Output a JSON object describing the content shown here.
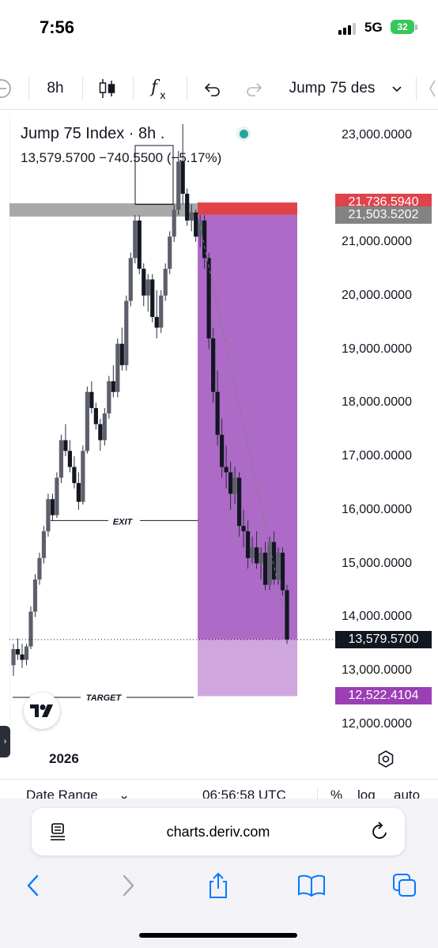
{
  "status_bar": {
    "time": "7:56",
    "network": "5G",
    "battery": "32"
  },
  "toolbar": {
    "interval": "8h",
    "indicator_icon": "fx-icon",
    "symbol": "Jump 75 des"
  },
  "legend": {
    "title": "Jump 75 Index · 8h .",
    "values": "13,579.5700  −740.5500 (−5.17%)"
  },
  "chart_data": {
    "type": "candlestick",
    "symbol": "Jump 75 Index",
    "interval": "8h",
    "y_ticks": [
      "23,000.0000",
      "21,000.0000",
      "20,000.0000",
      "19,000.0000",
      "18,000.0000",
      "17,000.0000",
      "16,000.0000",
      "15,000.0000",
      "14,000.0000",
      "13,000.0000",
      "12,000.0000"
    ],
    "ylim": [
      11700,
      23200
    ],
    "price_labels": [
      {
        "value": "21,736.5940",
        "color": "#e0424a"
      },
      {
        "value": "21,503.5202",
        "color": "#838383"
      },
      {
        "value": "13,579.5700",
        "color": "#131722"
      },
      {
        "value": "12,522.4104",
        "color": "#9b3fb5"
      }
    ],
    "short_position": {
      "entry": 21503.5202,
      "stop": 21736.594,
      "target": 12522.4104,
      "current": 13579.57
    },
    "annotations": [
      "EXIT",
      "TARGET"
    ],
    "candles": [
      [
        13100,
        13500,
        12900,
        13400
      ],
      [
        13400,
        13600,
        13200,
        13300
      ],
      [
        13300,
        13500,
        13050,
        13200
      ],
      [
        13200,
        13500,
        13100,
        13450
      ],
      [
        13450,
        14200,
        13400,
        14100
      ],
      [
        14100,
        14800,
        14000,
        14700
      ],
      [
        14700,
        15200,
        14600,
        15100
      ],
      [
        15100,
        15700,
        15000,
        15600
      ],
      [
        15600,
        16300,
        15500,
        16200
      ],
      [
        16200,
        16300,
        15800,
        15900
      ],
      [
        15900,
        16700,
        15850,
        16600
      ],
      [
        16600,
        17400,
        16500,
        17300
      ],
      [
        17300,
        17600,
        17000,
        17100
      ],
      [
        17100,
        17300,
        16700,
        16800
      ],
      [
        16800,
        17000,
        16400,
        16500
      ],
      [
        16500,
        16700,
        16000,
        16150
      ],
      [
        16150,
        17200,
        16100,
        17100
      ],
      [
        17100,
        18300,
        17050,
        18200
      ],
      [
        18200,
        18400,
        17800,
        17900
      ],
      [
        17900,
        18000,
        17500,
        17600
      ],
      [
        17600,
        17700,
        17100,
        17300
      ],
      [
        17300,
        17900,
        17200,
        17800
      ],
      [
        17800,
        18500,
        17700,
        18400
      ],
      [
        18400,
        18700,
        18100,
        18200
      ],
      [
        18200,
        19200,
        18100,
        19100
      ],
      [
        19100,
        19400,
        18600,
        18700
      ],
      [
        18700,
        20000,
        18600,
        19900
      ],
      [
        19900,
        20800,
        19800,
        20700
      ],
      [
        20700,
        21500,
        20600,
        21400
      ],
      [
        21400,
        21500,
        20400,
        20500
      ],
      [
        20500,
        20600,
        19800,
        20000
      ],
      [
        20000,
        20400,
        19700,
        20300
      ],
      [
        20300,
        20400,
        19500,
        19600
      ],
      [
        19600,
        20100,
        19200,
        19400
      ],
      [
        19400,
        20100,
        19300,
        20000
      ],
      [
        20000,
        20600,
        19900,
        20500
      ],
      [
        20500,
        21200,
        20400,
        21100
      ],
      [
        21100,
        21700,
        21000,
        21600
      ],
      [
        21600,
        22700,
        21500,
        22500
      ],
      [
        22500,
        23200,
        21700,
        21900
      ],
      [
        21900,
        22000,
        21300,
        21400
      ],
      [
        21400,
        21700,
        21200,
        21550
      ],
      [
        21550,
        21600,
        21000,
        21100
      ],
      [
        21100,
        21500,
        20900,
        21400
      ],
      [
        21400,
        21500,
        20500,
        20700
      ],
      [
        20700,
        20800,
        19000,
        19200
      ],
      [
        19200,
        19400,
        18000,
        18200
      ],
      [
        18200,
        18600,
        17200,
        17400
      ],
      [
        17400,
        17700,
        16600,
        16800
      ],
      [
        16800,
        17200,
        16400,
        16700
      ],
      [
        16700,
        16900,
        16000,
        16300
      ],
      [
        16300,
        16800,
        16100,
        16600
      ],
      [
        16600,
        16700,
        15500,
        15700
      ],
      [
        15700,
        16000,
        15300,
        15600
      ],
      [
        15600,
        15800,
        14900,
        15100
      ],
      [
        15100,
        15500,
        15000,
        15300
      ],
      [
        15300,
        15600,
        14900,
        15000
      ],
      [
        15000,
        15300,
        14700,
        15200
      ],
      [
        15200,
        15400,
        14500,
        14600
      ],
      [
        14600,
        15500,
        14500,
        15400
      ],
      [
        15400,
        15600,
        14600,
        14700
      ],
      [
        14700,
        15300,
        14600,
        15200
      ],
      [
        15200,
        15300,
        14400,
        14500
      ],
      [
        14500,
        14600,
        13500,
        13580
      ]
    ]
  },
  "time_axis": {
    "label": "2026"
  },
  "bottom_toolbar": {
    "date_range": "Date Range",
    "clock": "06:56:58 UTC",
    "percent": "%",
    "log": "log",
    "auto": "auto"
  },
  "browser": {
    "url": "charts.deriv.com"
  }
}
